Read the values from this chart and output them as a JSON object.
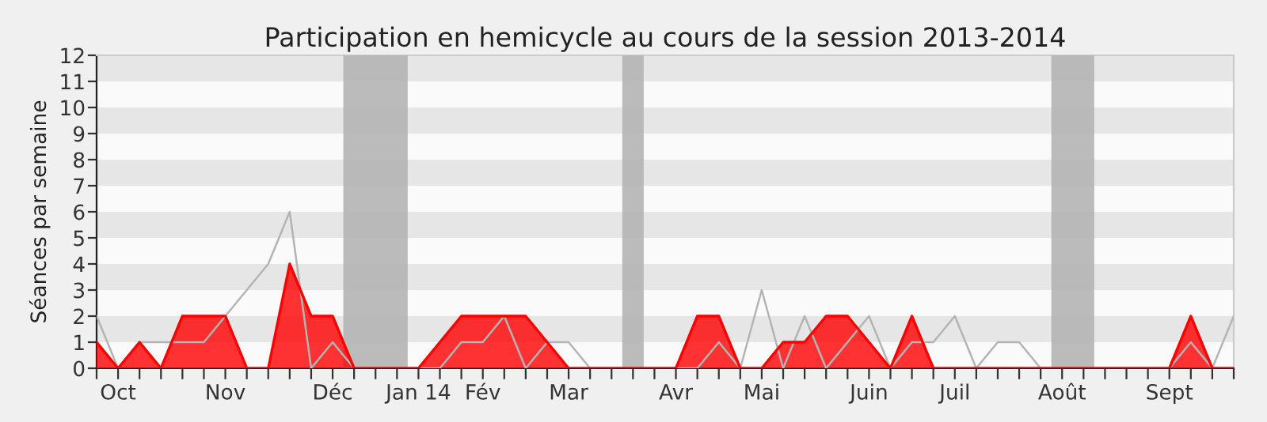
{
  "chart_data": {
    "type": "area",
    "title": "Participation en hemicycle au cours de la session 2013-2014",
    "ylabel": "Séances par semaine",
    "x": [
      "2013-09-30",
      "2013-10-07",
      "2013-10-14",
      "2013-10-21",
      "2013-10-28",
      "2013-11-04",
      "2013-11-11",
      "2013-11-18",
      "2013-11-25",
      "2013-12-02",
      "2013-12-09",
      "2013-12-16",
      "2013-12-23",
      "2013-12-30",
      "2014-01-06",
      "2014-01-13",
      "2014-01-20",
      "2014-01-27",
      "2014-02-03",
      "2014-02-10",
      "2014-02-17",
      "2014-02-24",
      "2014-03-03",
      "2014-03-10",
      "2014-03-17",
      "2014-03-24",
      "2014-03-31",
      "2014-04-07",
      "2014-04-14",
      "2014-04-21",
      "2014-04-28",
      "2014-05-05",
      "2014-05-12",
      "2014-05-19",
      "2014-05-26",
      "2014-06-02",
      "2014-06-09",
      "2014-06-16",
      "2014-06-23",
      "2014-06-30",
      "2014-07-07",
      "2014-07-14",
      "2014-07-21",
      "2014-07-28",
      "2014-08-04",
      "2014-08-11",
      "2014-08-18",
      "2014-08-25",
      "2014-09-01",
      "2014-09-08",
      "2014-09-15",
      "2014-09-22",
      "2014-09-29",
      "2014-10-06"
    ],
    "series": [
      {
        "color": "#ff0000",
        "values": [
          1,
          0,
          1,
          0,
          2,
          2,
          2,
          0,
          0,
          4,
          2,
          2,
          0,
          0,
          0,
          0,
          1,
          2,
          2,
          2,
          2,
          1,
          0,
          0,
          0,
          0,
          0,
          0,
          2,
          2,
          0,
          0,
          1,
          1,
          2,
          2,
          1,
          0,
          2,
          0,
          0,
          0,
          0,
          0,
          0,
          0,
          0,
          0,
          0,
          0,
          0,
          2,
          0,
          0
        ]
      },
      {
        "type": "line",
        "color": "#b4b4b4",
        "values": [
          2,
          0,
          1,
          1,
          1,
          1,
          2,
          3,
          4,
          6,
          0,
          1,
          0,
          0,
          0,
          0,
          0,
          1,
          1,
          2,
          0,
          1,
          1,
          0,
          0,
          0,
          0,
          0,
          0,
          1,
          0,
          3,
          0,
          2,
          0,
          1,
          2,
          0,
          1,
          1,
          2,
          0,
          1,
          1,
          0,
          0,
          0,
          0,
          0,
          0,
          0,
          1,
          0,
          2
        ]
      }
    ],
    "xlim": [
      "2013-09-30",
      "2014-10-06"
    ],
    "xticks": [
      {
        "value": "2013-09-30",
        "label": null
      },
      {
        "value": "2013-10-07",
        "label": "Oct"
      },
      {
        "value": "2013-10-14",
        "label": null
      },
      {
        "value": "2013-10-21",
        "label": null
      },
      {
        "value": "2013-10-28",
        "label": null
      },
      {
        "value": "2013-11-04",
        "label": null
      },
      {
        "value": "2013-11-11",
        "label": "Nov"
      },
      {
        "value": "2013-11-18",
        "label": null
      },
      {
        "value": "2013-11-25",
        "label": null
      },
      {
        "value": "2013-12-02",
        "label": null
      },
      {
        "value": "2013-12-09",
        "label": null
      },
      {
        "value": "2013-12-16",
        "label": "Déc"
      },
      {
        "value": "2013-12-23",
        "label": null
      },
      {
        "value": "2013-12-30",
        "label": null
      },
      {
        "value": "2014-01-06",
        "label": null
      },
      {
        "value": "2014-01-13",
        "label": "Jan 14"
      },
      {
        "value": "2014-01-20",
        "label": null
      },
      {
        "value": "2014-01-27",
        "label": null
      },
      {
        "value": "2014-02-03",
        "label": "Fév"
      },
      {
        "value": "2014-02-10",
        "label": null
      },
      {
        "value": "2014-02-17",
        "label": null
      },
      {
        "value": "2014-02-24",
        "label": null
      },
      {
        "value": "2014-03-03",
        "label": "Mar"
      },
      {
        "value": "2014-03-10",
        "label": null
      },
      {
        "value": "2014-03-17",
        "label": null
      },
      {
        "value": "2014-03-24",
        "label": null
      },
      {
        "value": "2014-03-31",
        "label": null
      },
      {
        "value": "2014-04-07",
        "label": "Avr"
      },
      {
        "value": "2014-04-14",
        "label": null
      },
      {
        "value": "2014-04-21",
        "label": null
      },
      {
        "value": "2014-04-28",
        "label": null
      },
      {
        "value": "2014-05-05",
        "label": "Mai"
      },
      {
        "value": "2014-05-12",
        "label": null
      },
      {
        "value": "2014-05-19",
        "label": null
      },
      {
        "value": "2014-05-26",
        "label": null
      },
      {
        "value": "2014-06-02",
        "label": null
      },
      {
        "value": "2014-06-09",
        "label": "Juin"
      },
      {
        "value": "2014-06-16",
        "label": null
      },
      {
        "value": "2014-06-23",
        "label": null
      },
      {
        "value": "2014-06-30",
        "label": null
      },
      {
        "value": "2014-07-07",
        "label": "Juil"
      },
      {
        "value": "2014-07-14",
        "label": null
      },
      {
        "value": "2014-07-21",
        "label": null
      },
      {
        "value": "2014-07-28",
        "label": null
      },
      {
        "value": "2014-08-04",
        "label": null
      },
      {
        "value": "2014-08-11",
        "label": "Août"
      },
      {
        "value": "2014-08-18",
        "label": null
      },
      {
        "value": "2014-08-25",
        "label": null
      },
      {
        "value": "2014-09-01",
        "label": null
      },
      {
        "value": "2014-09-08",
        "label": null
      },
      {
        "value": "2014-09-15",
        "label": "Sept"
      },
      {
        "value": "2014-09-22",
        "label": null
      },
      {
        "value": "2014-09-29",
        "label": null
      },
      {
        "value": "2014-10-06",
        "label": null
      }
    ],
    "ylim": [
      0,
      12
    ],
    "yticks": [
      0,
      1,
      2,
      3,
      4,
      5,
      6,
      7,
      8,
      9,
      10,
      11,
      12
    ],
    "bands": [
      {
        "axis": "y",
        "from": 1,
        "to": 2,
        "color": "#e6e6e6"
      },
      {
        "axis": "y",
        "from": 3,
        "to": 4,
        "color": "#e6e6e6"
      },
      {
        "axis": "y",
        "from": 5,
        "to": 6,
        "color": "#e6e6e6"
      },
      {
        "axis": "y",
        "from": 7,
        "to": 8,
        "color": "#e6e6e6"
      },
      {
        "axis": "y",
        "from": 9,
        "to": 10,
        "color": "#e6e6e6"
      },
      {
        "axis": "y",
        "from": 11,
        "to": 12,
        "color": "#e6e6e6"
      },
      {
        "axis": "x",
        "from": "2013-12-19T12:00",
        "to": "2014-01-09T12:00",
        "color": "#b4b4b4"
      },
      {
        "axis": "x",
        "from": "2014-03-20T12:00",
        "to": "2014-03-27T12:00",
        "color": "#b4b4b4"
      },
      {
        "axis": "x",
        "from": "2014-08-07T12:00",
        "to": "2014-08-21T12:00",
        "color": "#b4b4b4"
      }
    ]
  }
}
